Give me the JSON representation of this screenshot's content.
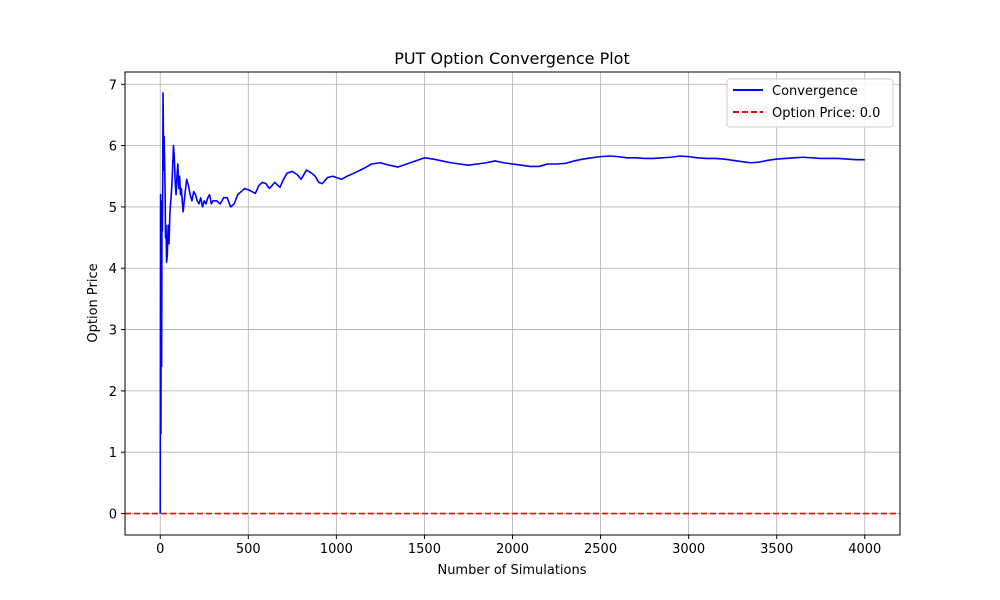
{
  "chart_data": {
    "type": "line",
    "title": "PUT Option Convergence Plot",
    "xlabel": "Number of Simulations",
    "ylabel": "Option Price",
    "xlim": [
      -200,
      4200
    ],
    "ylim": [
      -0.35,
      7.2
    ],
    "xticks": [
      0,
      500,
      1000,
      1500,
      2000,
      2500,
      3000,
      3500,
      4000
    ],
    "yticks": [
      0,
      1,
      2,
      3,
      4,
      5,
      6,
      7
    ],
    "grid": true,
    "legend_position": "top-right",
    "series": [
      {
        "name": "Convergence",
        "color": "#0000ff",
        "style": "solid",
        "x": [
          0,
          2,
          4,
          6,
          8,
          10,
          12,
          14,
          16,
          18,
          20,
          22,
          25,
          28,
          30,
          33,
          36,
          40,
          45,
          50,
          55,
          60,
          65,
          70,
          75,
          80,
          85,
          90,
          95,
          100,
          105,
          110,
          115,
          120,
          125,
          130,
          140,
          150,
          160,
          170,
          180,
          190,
          200,
          210,
          220,
          230,
          240,
          250,
          260,
          270,
          280,
          290,
          300,
          320,
          340,
          360,
          380,
          400,
          420,
          440,
          460,
          480,
          500,
          520,
          540,
          560,
          580,
          600,
          620,
          650,
          680,
          700,
          720,
          750,
          780,
          800,
          830,
          860,
          880,
          900,
          920,
          950,
          980,
          1000,
          1030,
          1060,
          1100,
          1150,
          1200,
          1250,
          1300,
          1350,
          1400,
          1450,
          1500,
          1550,
          1600,
          1650,
          1700,
          1750,
          1800,
          1850,
          1900,
          1950,
          2000,
          2050,
          2100,
          2150,
          2200,
          2250,
          2300,
          2350,
          2400,
          2450,
          2500,
          2550,
          2600,
          2650,
          2700,
          2750,
          2800,
          2850,
          2900,
          2950,
          3000,
          3050,
          3100,
          3150,
          3200,
          3250,
          3300,
          3350,
          3400,
          3450,
          3500,
          3550,
          3600,
          3650,
          3700,
          3750,
          3800,
          3850,
          3900,
          3950,
          4000
        ],
        "y": [
          0.0,
          5.2,
          1.3,
          4.8,
          2.4,
          5.1,
          4.6,
          5.3,
          6.86,
          6.2,
          5.6,
          6.15,
          5.7,
          5.2,
          4.5,
          4.7,
          4.1,
          4.2,
          4.7,
          4.4,
          4.9,
          5.1,
          5.3,
          5.6,
          6.0,
          5.8,
          5.4,
          5.2,
          5.5,
          5.7,
          5.3,
          5.5,
          5.2,
          5.3,
          5.1,
          4.92,
          5.2,
          5.45,
          5.35,
          5.2,
          5.1,
          5.25,
          5.2,
          5.1,
          5.05,
          5.15,
          5.0,
          5.1,
          5.05,
          5.15,
          5.2,
          5.05,
          5.1,
          5.1,
          5.05,
          5.15,
          5.15,
          5.0,
          5.05,
          5.2,
          5.25,
          5.3,
          5.28,
          5.25,
          5.22,
          5.35,
          5.4,
          5.38,
          5.3,
          5.4,
          5.32,
          5.45,
          5.55,
          5.58,
          5.52,
          5.45,
          5.6,
          5.55,
          5.5,
          5.4,
          5.38,
          5.48,
          5.5,
          5.48,
          5.45,
          5.5,
          5.55,
          5.62,
          5.7,
          5.72,
          5.68,
          5.65,
          5.7,
          5.75,
          5.8,
          5.78,
          5.75,
          5.72,
          5.7,
          5.68,
          5.7,
          5.72,
          5.75,
          5.72,
          5.7,
          5.68,
          5.66,
          5.66,
          5.7,
          5.7,
          5.71,
          5.75,
          5.78,
          5.8,
          5.82,
          5.83,
          5.82,
          5.8,
          5.8,
          5.79,
          5.79,
          5.8,
          5.81,
          5.83,
          5.82,
          5.8,
          5.79,
          5.79,
          5.78,
          5.76,
          5.74,
          5.72,
          5.73,
          5.76,
          5.78,
          5.79,
          5.8,
          5.81,
          5.8,
          5.79,
          5.79,
          5.79,
          5.78,
          5.77,
          5.77
        ]
      },
      {
        "name": "Option Price: 0.0",
        "color": "#ff0000",
        "style": "dashed",
        "y_constant": 0.0
      }
    ]
  }
}
